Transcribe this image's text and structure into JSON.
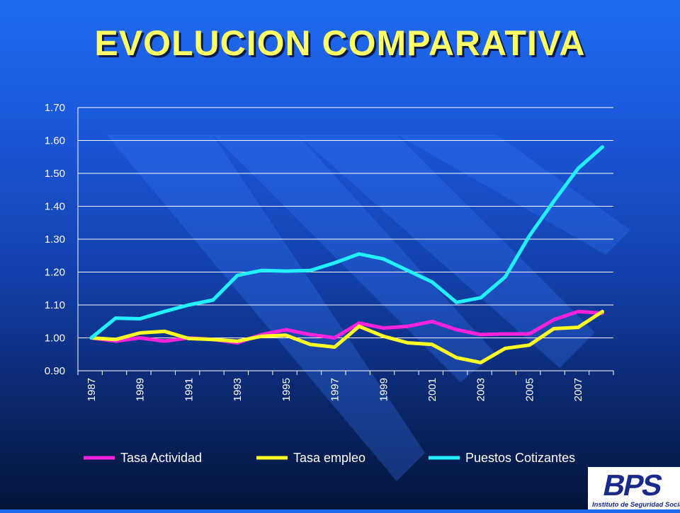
{
  "title": "EVOLUCION COMPARATIVA",
  "logo": {
    "mark": "BPS",
    "caption": "Instituto de Seguridad Social",
    "color": "#1a2a8c"
  },
  "colors": {
    "grid": "#ffffff",
    "axis_text": "#ffffff",
    "background": "#1a55d6"
  },
  "chart_data": {
    "type": "line",
    "title": "",
    "xlabel": "",
    "ylabel": "",
    "ylim": [
      0.9,
      1.7
    ],
    "y_ticks": [
      "0.90",
      "1.00",
      "1.10",
      "1.20",
      "1.30",
      "1.40",
      "1.50",
      "1.60",
      "1.70"
    ],
    "x_tick_labels": [
      "1987",
      "1989",
      "1991",
      "1993",
      "1995",
      "1997",
      "1999",
      "2001",
      "2003",
      "2005",
      "2007"
    ],
    "x": [
      1987,
      1988,
      1989,
      1990,
      1991,
      1992,
      1993,
      1994,
      1995,
      1996,
      1997,
      1998,
      1999,
      2000,
      2001,
      2002,
      2003,
      2004,
      2005,
      2006,
      2007,
      2008
    ],
    "grid": true,
    "legend_position": "bottom",
    "series": [
      {
        "name": "Tasa Actividad",
        "color": "#ff22dd",
        "values": [
          1.0,
          0.99,
          1.0,
          0.99,
          1.0,
          0.995,
          0.985,
          1.01,
          1.025,
          1.01,
          1.0,
          1.045,
          1.03,
          1.035,
          1.05,
          1.025,
          1.01,
          1.012,
          1.012,
          1.055,
          1.08,
          1.075
        ]
      },
      {
        "name": "Tasa empleo",
        "color": "#ffff22",
        "values": [
          1.0,
          0.995,
          1.015,
          1.02,
          0.998,
          0.995,
          0.99,
          1.005,
          1.008,
          0.98,
          0.972,
          1.035,
          1.005,
          0.985,
          0.98,
          0.94,
          0.925,
          0.968,
          0.978,
          1.028,
          1.032,
          1.08
        ]
      },
      {
        "name": "Puestos Cotizantes",
        "color": "#22f0ff",
        "values": [
          1.0,
          1.06,
          1.058,
          1.08,
          1.1,
          1.115,
          1.19,
          1.205,
          1.203,
          1.205,
          1.228,
          1.255,
          1.24,
          1.205,
          1.17,
          1.108,
          1.122,
          1.185,
          1.31,
          1.415,
          1.515,
          1.58
        ]
      }
    ]
  }
}
